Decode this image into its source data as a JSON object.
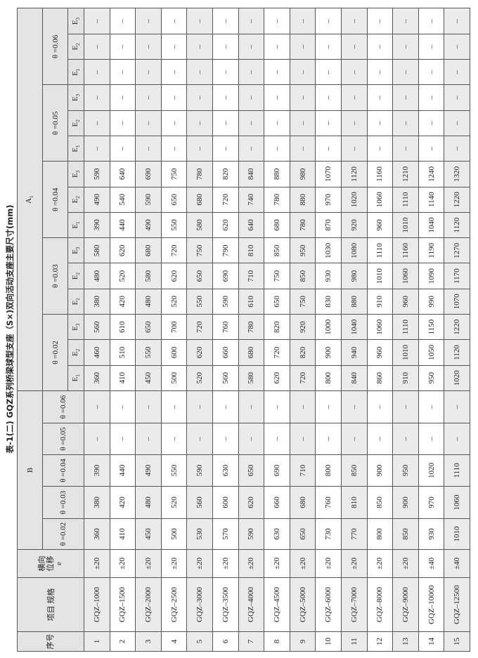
{
  "title": "表-1(二)  GQZ系列桥梁球型支座（S×)双向活动支座主要尺寸(mm)",
  "headers": {
    "no": "序号",
    "spec": "项目 规格",
    "e_line1": "横向",
    "e_line2": "位移",
    "e_line3": "e",
    "B": "B",
    "A1": "A",
    "A1_sub": "1",
    "theta": [
      "θ =0.02",
      "θ =0.03",
      "θ =0.04",
      "θ =0.05",
      "θ =0.06"
    ],
    "E": [
      "E",
      "E",
      "E"
    ],
    "E_sub": [
      "1",
      "2",
      "3"
    ]
  },
  "rows": [
    {
      "no": "1",
      "spec": "GQZ–1000",
      "e": "±20",
      "B": [
        "360",
        "380",
        "390",
        "–",
        "–"
      ],
      "A1": [
        "360",
        "460",
        "560",
        "380",
        "480",
        "580",
        "390",
        "490",
        "590",
        "–",
        "–",
        "–",
        "–",
        "–",
        "–"
      ]
    },
    {
      "no": "2",
      "spec": "GQZ–1500",
      "e": "±20",
      "B": [
        "410",
        "420",
        "440",
        "–",
        "–"
      ],
      "A1": [
        "410",
        "510",
        "610",
        "420",
        "520",
        "620",
        "440",
        "540",
        "640",
        "–",
        "–",
        "–",
        "–",
        "–",
        "–"
      ]
    },
    {
      "no": "3",
      "spec": "GQZ–2000",
      "e": "±20",
      "B": [
        "450",
        "480",
        "490",
        "–",
        "–"
      ],
      "A1": [
        "450",
        "550",
        "650",
        "480",
        "580",
        "680",
        "490",
        "590",
        "690",
        "–",
        "–",
        "–",
        "–",
        "–",
        "–"
      ]
    },
    {
      "no": "4",
      "spec": "GQZ–2500",
      "e": "±20",
      "B": [
        "500",
        "520",
        "550",
        "–",
        "–"
      ],
      "A1": [
        "500",
        "600",
        "700",
        "520",
        "620",
        "720",
        "550",
        "650",
        "750",
        "–",
        "–",
        "–",
        "–",
        "–",
        "–"
      ]
    },
    {
      "no": "5",
      "spec": "GQZ–3000",
      "e": "±20",
      "B": [
        "530",
        "560",
        "590",
        "–",
        "–"
      ],
      "A1": [
        "520",
        "620",
        "720",
        "550",
        "650",
        "750",
        "580",
        "680",
        "780",
        "–",
        "–",
        "–",
        "–",
        "–",
        "–"
      ]
    },
    {
      "no": "6",
      "spec": "GQZ–3500",
      "e": "±20",
      "B": [
        "570",
        "600",
        "630",
        "–",
        "–"
      ],
      "A1": [
        "560",
        "660",
        "760",
        "590",
        "690",
        "790",
        "620",
        "720",
        "820",
        "–",
        "–",
        "–",
        "–",
        "–",
        "–"
      ]
    },
    {
      "no": "7",
      "spec": "GQZ–4000",
      "e": "±20",
      "B": [
        "590",
        "620",
        "650",
        "–",
        "–"
      ],
      "A1": [
        "580",
        "680",
        "780",
        "610",
        "710",
        "810",
        "640",
        "740",
        "840",
        "–",
        "–",
        "–",
        "–",
        "–",
        "–"
      ]
    },
    {
      "no": "8",
      "spec": "GQZ–4500",
      "e": "±20",
      "B": [
        "630",
        "660",
        "690",
        "–",
        "–"
      ],
      "A1": [
        "620",
        "720",
        "820",
        "650",
        "750",
        "850",
        "680",
        "780",
        "880",
        "–",
        "–",
        "–",
        "–",
        "–",
        "–"
      ]
    },
    {
      "no": "9",
      "spec": "GQZ–5000",
      "e": "±20",
      "B": [
        "650",
        "680",
        "710",
        "–",
        "–"
      ],
      "A1": [
        "720",
        "820",
        "920",
        "750",
        "850",
        "950",
        "780",
        "880",
        "980",
        "–",
        "–",
        "–",
        "–",
        "–",
        "–"
      ]
    },
    {
      "no": "10",
      "spec": "GQZ–6000",
      "e": "±20",
      "B": [
        "730",
        "760",
        "800",
        "–",
        "–"
      ],
      "A1": [
        "800",
        "900",
        "1000",
        "830",
        "930",
        "1030",
        "870",
        "970",
        "1070",
        "–",
        "–",
        "–",
        "–",
        "–",
        "–"
      ]
    },
    {
      "no": "11",
      "spec": "GQZ–7000",
      "e": "±20",
      "B": [
        "770",
        "810",
        "850",
        "–",
        "–"
      ],
      "A1": [
        "840",
        "940",
        "1040",
        "880",
        "980",
        "1080",
        "920",
        "1020",
        "1120",
        "–",
        "–",
        "–",
        "–",
        "–",
        "–"
      ]
    },
    {
      "no": "12",
      "spec": "GQZ–8000",
      "e": "±20",
      "B": [
        "800",
        "850",
        "900",
        "–",
        "–"
      ],
      "A1": [
        "860",
        "960",
        "1060",
        "910",
        "1010",
        "1110",
        "960",
        "1060",
        "1160",
        "–",
        "–",
        "–",
        "–",
        "–",
        "–"
      ]
    },
    {
      "no": "13",
      "spec": "GQZ–9000",
      "e": "±20",
      "B": [
        "850",
        "900",
        "950",
        "–",
        "–"
      ],
      "A1": [
        "910",
        "1010",
        "1110",
        "960",
        "1060",
        "1160",
        "1010",
        "1110",
        "1210",
        "–",
        "–",
        "–",
        "–",
        "–",
        "–"
      ]
    },
    {
      "no": "14",
      "spec": "GQZ–10000",
      "e": "±40",
      "B": [
        "930",
        "970",
        "1020",
        "–",
        "–"
      ],
      "A1": [
        "950",
        "1050",
        "1150",
        "990",
        "1090",
        "1190",
        "1040",
        "1140",
        "1240",
        "–",
        "–",
        "–",
        "–",
        "–",
        "–"
      ]
    },
    {
      "no": "15",
      "spec": "GQZ–12500",
      "e": "±40",
      "B": [
        "1010",
        "1060",
        "1110",
        "–",
        "–"
      ],
      "A1": [
        "1020",
        "1120",
        "1220",
        "1070",
        "1170",
        "1270",
        "1120",
        "1220",
        "1320",
        "–",
        "–",
        "–",
        "–",
        "–",
        "–"
      ]
    }
  ],
  "colors": {
    "header_bg": "#e4e4e4",
    "odd_row_bg": "#ebebeb",
    "border": "#555555"
  }
}
